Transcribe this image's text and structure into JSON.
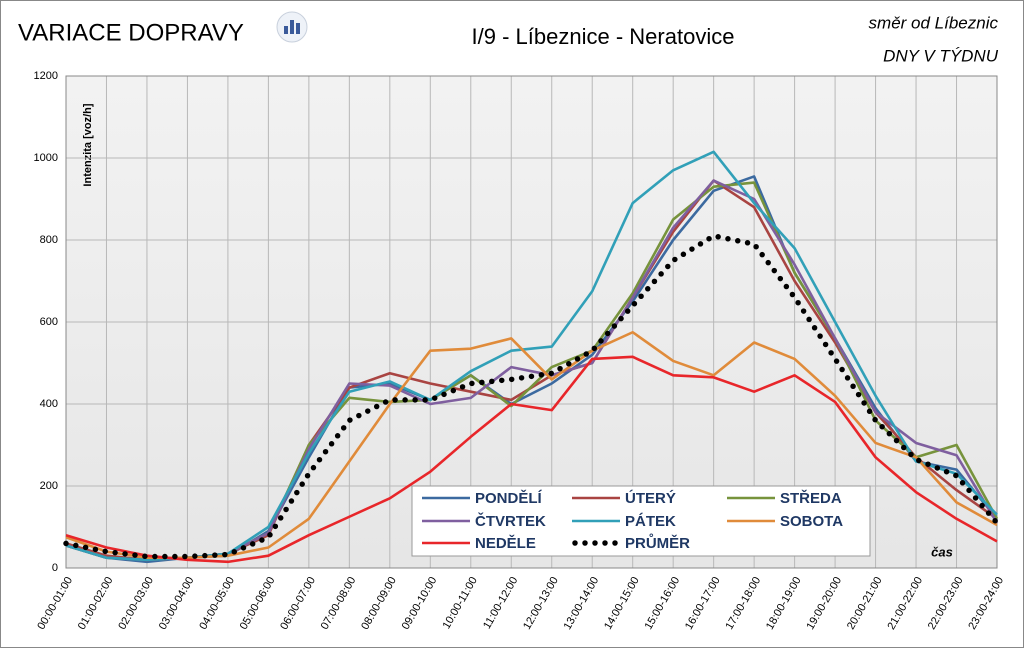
{
  "chart_data": {
    "type": "line",
    "title": "VARIACE DOPRAVY",
    "subtitle": "I/9 - Líbeznice - Neratovice",
    "annotations": [
      "směr od Líbeznic",
      "DNY V TÝDNU"
    ],
    "ylabel": "Intenzita  [voz/h]",
    "xlabel": "čas",
    "categories": [
      "00:00-01:00",
      "01:00-02:00",
      "02:00-03:00",
      "03:00-04:00",
      "04:00-05:00",
      "05:00-06:00",
      "06:00-07:00",
      "07:00-08:00",
      "08:00-09:00",
      "09:00-10:00",
      "10:00-11:00",
      "11:00-12:00",
      "12:00-13:00",
      "13:00-14:00",
      "14:00-15:00",
      "15:00-16:00",
      "16:00-17:00",
      "17:00-18:00",
      "18:00-19:00",
      "19:00-20:00",
      "20:00-21:00",
      "21:00-22:00",
      "22:00-23:00",
      "23:00-24:00"
    ],
    "ylim": [
      0,
      1200
    ],
    "yticks": [
      0,
      200,
      400,
      600,
      800,
      1000,
      1200
    ],
    "grid": true,
    "series": [
      {
        "name": "PONDĚLÍ",
        "color": "#3c6aa0",
        "values": [
          55,
          25,
          15,
          25,
          30,
          90,
          270,
          440,
          450,
          410,
          470,
          400,
          450,
          520,
          650,
          800,
          920,
          955,
          720,
          560,
          390,
          260,
          240,
          120
        ]
      },
      {
        "name": "ÚTERÝ",
        "color": "#a94442",
        "values": [
          60,
          30,
          20,
          25,
          35,
          80,
          300,
          440,
          475,
          450,
          430,
          410,
          470,
          500,
          660,
          820,
          945,
          880,
          700,
          550,
          380,
          270,
          190,
          120
        ]
      },
      {
        "name": "STŘEDA",
        "color": "#77933c",
        "values": [
          55,
          25,
          20,
          25,
          35,
          85,
          300,
          415,
          405,
          410,
          470,
          395,
          490,
          530,
          670,
          850,
          930,
          940,
          720,
          560,
          360,
          270,
          300,
          120
        ]
      },
      {
        "name": "ČTVRTEK",
        "color": "#7f5f9f",
        "values": [
          55,
          25,
          20,
          25,
          35,
          85,
          290,
          450,
          445,
          400,
          415,
          490,
          470,
          500,
          660,
          830,
          945,
          900,
          740,
          560,
          380,
          305,
          275,
          110
        ]
      },
      {
        "name": "PÁTEK",
        "color": "#31a0b8",
        "values": [
          55,
          25,
          20,
          25,
          35,
          100,
          280,
          430,
          455,
          410,
          480,
          530,
          540,
          675,
          890,
          970,
          1015,
          890,
          780,
          600,
          420,
          260,
          230,
          130
        ]
      },
      {
        "name": "SOBOTA",
        "color": "#e08b3a",
        "values": [
          75,
          40,
          25,
          25,
          30,
          50,
          120,
          260,
          400,
          530,
          535,
          560,
          460,
          530,
          575,
          505,
          470,
          550,
          510,
          420,
          305,
          270,
          160,
          105
        ]
      },
      {
        "name": "NEDĚLE",
        "color": "#e8262a",
        "values": [
          80,
          50,
          30,
          20,
          15,
          30,
          80,
          125,
          170,
          235,
          320,
          400,
          385,
          510,
          515,
          470,
          465,
          430,
          470,
          405,
          270,
          185,
          120,
          65
        ]
      },
      {
        "name": "PRŮMĚR",
        "color": "#000000",
        "dash": "dotted",
        "values": [
          60,
          40,
          28,
          28,
          33,
          75,
          230,
          360,
          410,
          410,
          450,
          460,
          475,
          530,
          640,
          750,
          810,
          790,
          660,
          510,
          360,
          265,
          225,
          110
        ]
      }
    ]
  }
}
